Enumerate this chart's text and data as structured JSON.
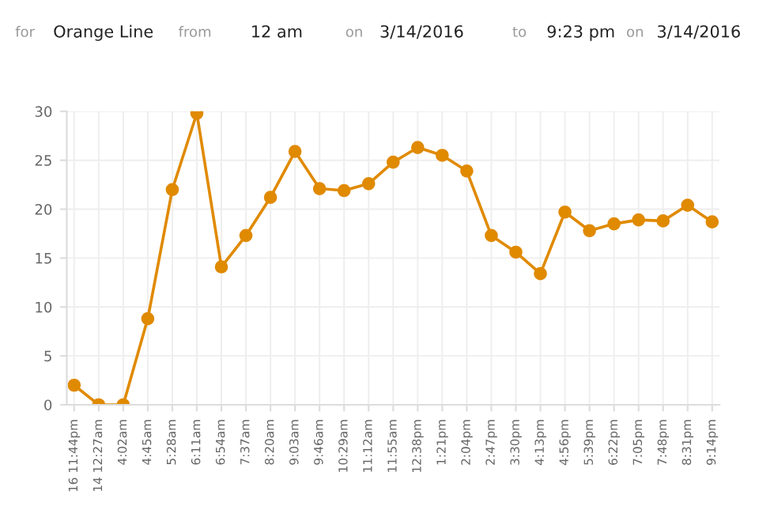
{
  "chart_data": {
    "type": "line",
    "annotations": [
      "for",
      "Orange Line",
      "from",
      "12 am",
      "on",
      "3/14/2016",
      "to",
      "9:23 pm",
      "on",
      "3/14/2016"
    ],
    "categories": [
      "16 11:44pm",
      "14 12:27am",
      "4:02am",
      "4:45am",
      "5:28am",
      "6:11am",
      "6:54am",
      "7:37am",
      "8:20am",
      "9:03am",
      "9:46am",
      "10:29am",
      "11:12am",
      "11:55am",
      "12:38pm",
      "1:21pm",
      "2:04pm",
      "2:47pm",
      "3:30pm",
      "4:13pm",
      "4:56pm",
      "5:39pm",
      "6:22pm",
      "7:05pm",
      "7:48pm",
      "8:31pm",
      "9:14pm"
    ],
    "series": [
      {
        "color": "#e08a00",
        "values": [
          2,
          0,
          0,
          8.8,
          22,
          29.8,
          14.1,
          17.3,
          21.2,
          25.9,
          22.1,
          21.9,
          22.6,
          24.8,
          26.3,
          25.5,
          23.9,
          17.3,
          15.6,
          13.4,
          19.7,
          17.8,
          18.5,
          18.9,
          18.8,
          20.4,
          18.7
        ]
      }
    ],
    "ylim": [
      0,
      30
    ],
    "yticks": [
      0,
      5,
      10,
      15,
      20,
      25,
      30
    ],
    "grid": true,
    "marker": "circle",
    "line_style": "solid"
  }
}
